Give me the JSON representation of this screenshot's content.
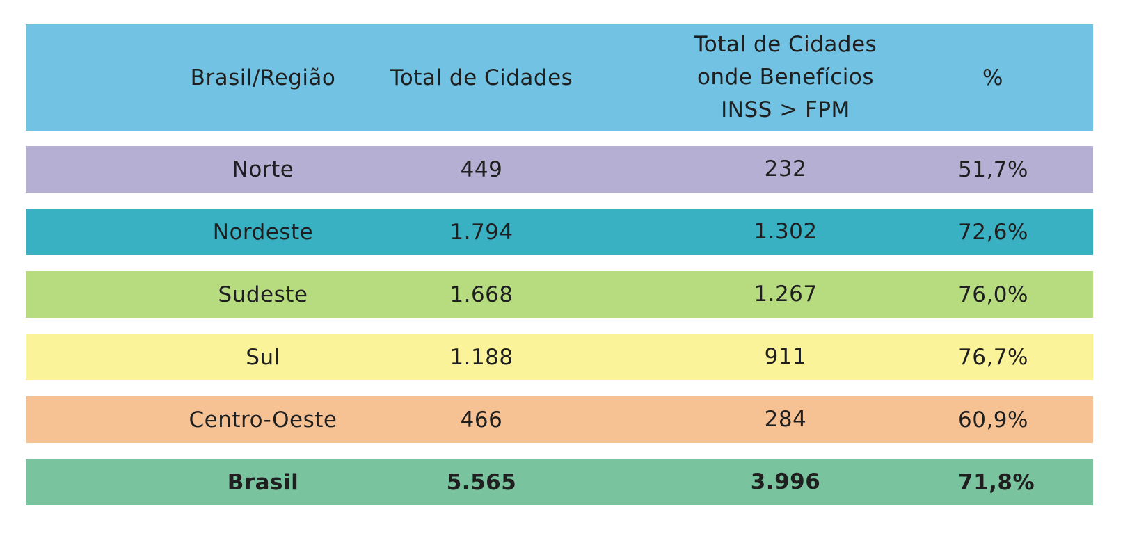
{
  "header": {
    "region": "Brasil/Região",
    "total_cities": "Total de Cidades",
    "cities_benefits": "Total de Cidades\nonde Benefícios\nINSS > FPM",
    "percent": "%"
  },
  "colors": {
    "header": "#72c2e3",
    "norte": "#b6afd4",
    "nordeste": "#3ab0c3",
    "sudeste": "#b7dc80",
    "sul": "#fbf39a",
    "centro_oeste": "#f6c294",
    "brasil": "#79c49f"
  },
  "rows": [
    {
      "region": "Norte",
      "total": "449",
      "count": "232",
      "percent": "51,7%"
    },
    {
      "region": "Nordeste",
      "total": "1.794",
      "count": "1.302",
      "percent": "72,6%"
    },
    {
      "region": "Sudeste",
      "total": "1.668",
      "count": "1.267",
      "percent": "76,0%"
    },
    {
      "region": "Sul",
      "total": "1.188",
      "count": "911",
      "percent": "76,7%"
    },
    {
      "region": "Centro-Oeste",
      "total": "466",
      "count": "284",
      "percent": "60,9%"
    },
    {
      "region": "Brasil",
      "total": "5.565",
      "count": "3.996",
      "percent": "71,8%"
    }
  ]
}
